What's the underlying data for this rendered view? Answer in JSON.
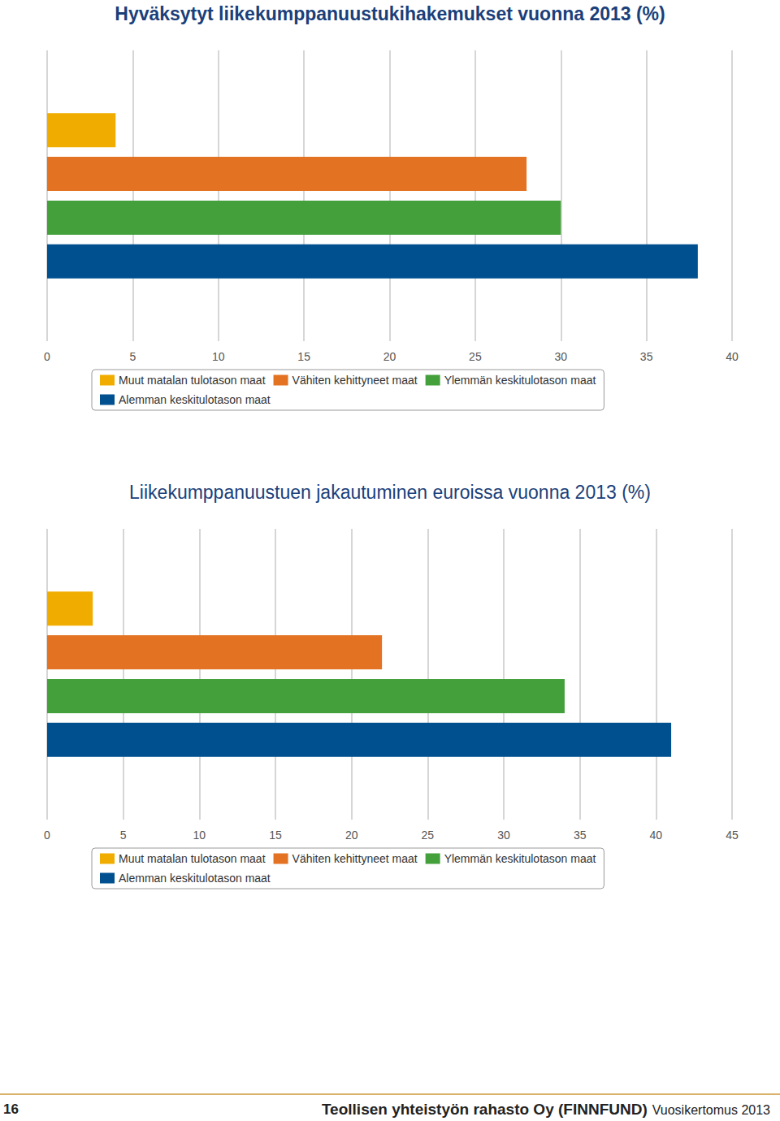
{
  "chart_data": [
    {
      "type": "bar",
      "title": "Hyväksytyt liikekumppanuustukihakemukset vuonna 2013 (%)",
      "orientation": "horizontal",
      "categories": [
        null
      ],
      "series": [
        {
          "name": "Muut matalan tulotason maat",
          "color": "#f0ad00",
          "values": [
            4
          ]
        },
        {
          "name": "Vähiten kehittyneet maat",
          "color": "#e37222",
          "values": [
            28
          ]
        },
        {
          "name": "Ylemmän keskitulotason maat",
          "color": "#43a03a",
          "values": [
            30
          ]
        },
        {
          "name": "Alemman keskitulotason maat",
          "color": "#00508f",
          "values": [
            38
          ]
        }
      ],
      "xlim": [
        0,
        40
      ],
      "xticks": [
        0,
        5,
        10,
        15,
        20,
        25,
        30,
        35,
        40
      ],
      "grid": true,
      "legend": "bottom",
      "tick_labels": "x"
    },
    {
      "type": "bar",
      "title": "Liikekumppanuustuen jakautuminen euroissa vuonna 2013 (%)",
      "orientation": "horizontal",
      "categories": [
        null
      ],
      "series": [
        {
          "name": "Muut matalan tulotason maat",
          "color": "#f0ad00",
          "values": [
            3
          ]
        },
        {
          "name": "Vähiten kehittyneet maat",
          "color": "#e37222",
          "values": [
            22
          ]
        },
        {
          "name": "Ylemmän keskitulotason maat",
          "color": "#43a03a",
          "values": [
            34
          ]
        },
        {
          "name": "Alemman keskitulotason maat",
          "color": "#00508f",
          "values": [
            41
          ]
        }
      ],
      "xlim": [
        0,
        45
      ],
      "xticks": [
        0,
        5,
        10,
        15,
        20,
        25,
        30,
        35,
        40,
        45
      ],
      "grid": true,
      "legend": "bottom",
      "tick_labels": "x"
    }
  ],
  "footer": {
    "page": 16,
    "publisher": "Teollisen yhteistyön rahasto Oy (FINNFUND)",
    "report": "Vuosikertomus 2013"
  }
}
